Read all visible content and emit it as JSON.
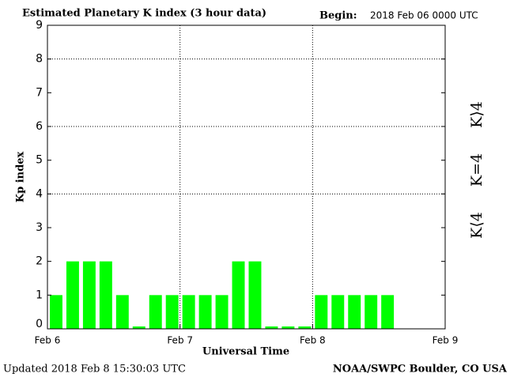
{
  "chart_data": {
    "type": "bar",
    "title": "Estimated Planetary K index (3 hour data)",
    "begin_label": "Begin:",
    "begin": "2018 Feb 06 0000 UTC",
    "y_label": "Kp index",
    "x_label": "Universal Time",
    "footer_left": "Updated 2018 Feb  8 15:30:03 UTC",
    "footer_right": "NOAA/SWPC Boulder, CO USA",
    "values": [
      1,
      2,
      2,
      2,
      1,
      0,
      1,
      1,
      1,
      1,
      1,
      2,
      2,
      0,
      0,
      0,
      1,
      1,
      1,
      1,
      1
    ],
    "color": "#00ff00",
    "xlim": [
      0,
      3
    ],
    "xticks": [
      {
        "value": 0,
        "label": "Feb 6"
      },
      {
        "value": 1,
        "label": "Feb 7"
      },
      {
        "value": 2,
        "label": "Feb 8"
      },
      {
        "value": 3,
        "label": "Feb 9"
      }
    ],
    "bars_per_x_unit": 8,
    "ylim": [
      0,
      9
    ],
    "yticks": [
      0,
      1,
      2,
      3,
      4,
      5,
      6,
      7,
      8,
      9
    ],
    "ygrid": [
      4,
      6,
      8
    ],
    "xgrid": [
      1,
      2
    ],
    "legend": [
      {
        "name": "K⟩4",
        "color": "#ee2222"
      },
      {
        "name": "K=4",
        "color": "#ffcc00"
      },
      {
        "name": "K⟨4",
        "color": "#22dd22"
      }
    ]
  }
}
